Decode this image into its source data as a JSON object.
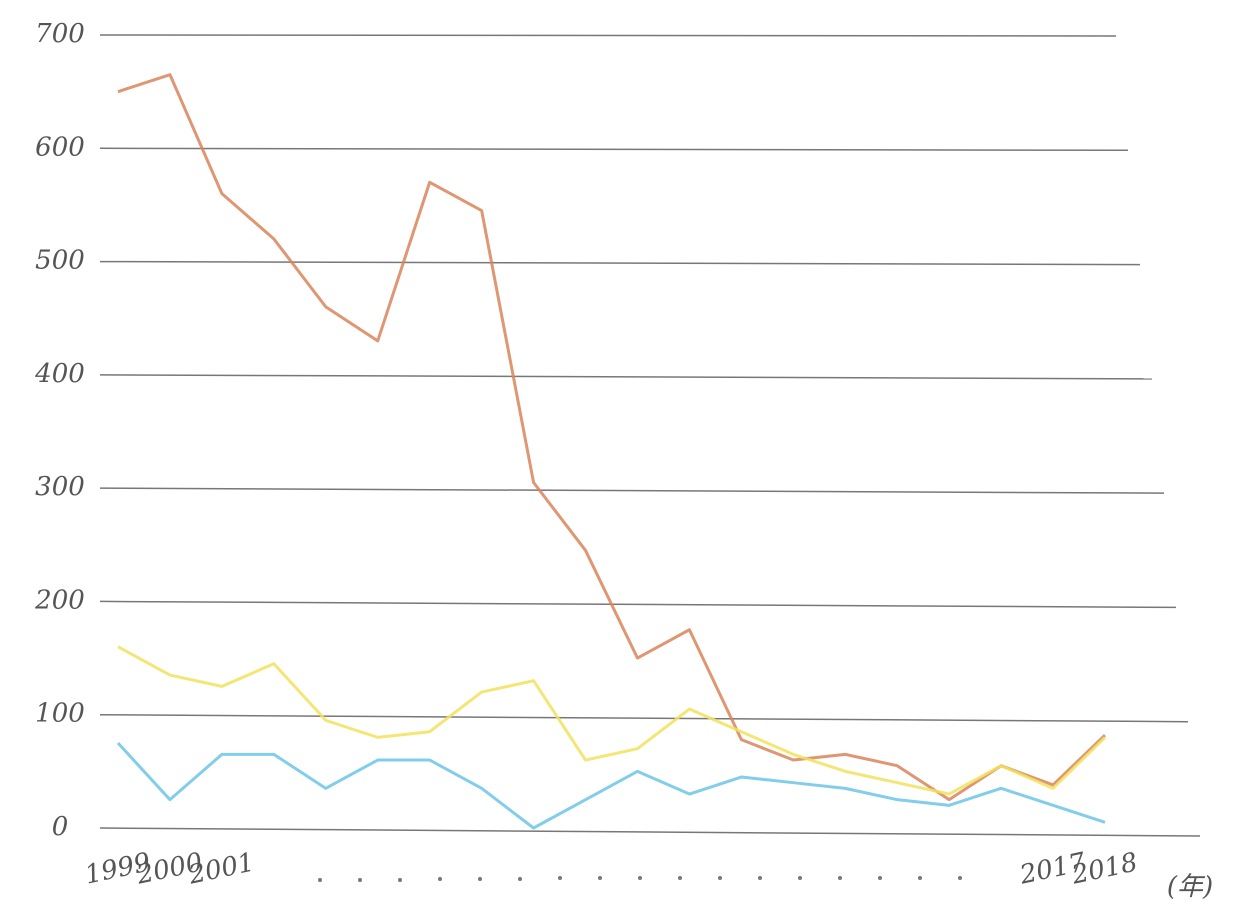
{
  "chart_data": {
    "type": "line",
    "x_label": "(年)",
    "categories": [
      "1999",
      "2000",
      "2001",
      null,
      null,
      null,
      null,
      null,
      null,
      null,
      null,
      null,
      null,
      null,
      null,
      null,
      null,
      null,
      "2017",
      "2018"
    ],
    "series": [
      {
        "color": "#d9845a",
        "values": [
          650,
          665,
          560,
          520,
          460,
          430,
          570,
          545,
          305,
          245,
          150,
          175,
          78,
          60,
          65,
          55,
          25,
          55,
          38,
          82
        ]
      },
      {
        "color": "#f2e25c",
        "values": [
          160,
          135,
          125,
          145,
          95,
          80,
          85,
          120,
          130,
          60,
          70,
          105,
          85,
          65,
          50,
          40,
          30,
          55,
          35,
          80
        ]
      },
      {
        "color": "#6cc6e6",
        "values": [
          75,
          25,
          65,
          65,
          35,
          60,
          60,
          35,
          0,
          25,
          50,
          30,
          45,
          40,
          35,
          25,
          20,
          35,
          20,
          5
        ]
      }
    ],
    "ylim": [
      0,
      700
    ],
    "yticks": [
      0,
      100,
      200,
      300,
      400,
      500,
      600,
      700
    ],
    "grid": true
  }
}
